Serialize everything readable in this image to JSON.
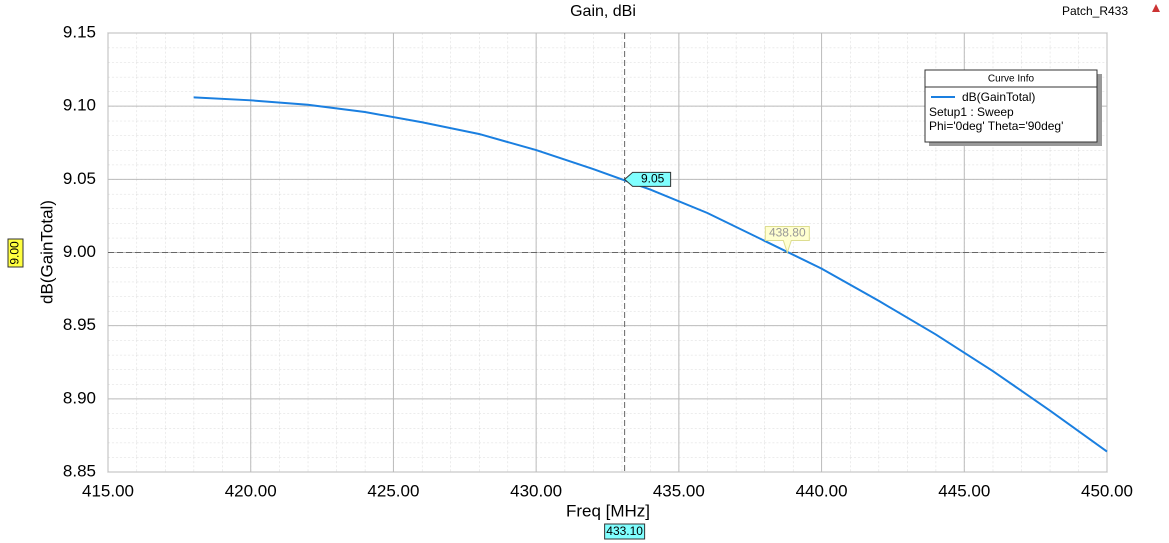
{
  "chart_data": {
    "type": "line",
    "title": "Gain, dBi",
    "project": "Patch_R433",
    "x_label": "Freq [MHz]",
    "y_label": "dB(GainTotal)",
    "xlim": [
      415,
      450
    ],
    "ylim": [
      8.85,
      9.15
    ],
    "xticks": [
      {
        "value": 415,
        "label": "415.00"
      },
      {
        "value": 420,
        "label": "420.00"
      },
      {
        "value": 425,
        "label": "425.00"
      },
      {
        "value": 430,
        "label": "430.00"
      },
      {
        "value": 435,
        "label": "435.00"
      },
      {
        "value": 440,
        "label": "440.00"
      },
      {
        "value": 445,
        "label": "445.00"
      },
      {
        "value": 450,
        "label": "450.00"
      }
    ],
    "yticks": [
      8.85,
      {
        "value": 8.9,
        "label": "8.90"
      },
      8.95,
      {
        "value": 9.0,
        "label": "9.00"
      },
      9.05,
      {
        "value": 9.1,
        "label": "9.10"
      },
      9.15
    ],
    "grid": true,
    "legend": {
      "title": "Curve Info",
      "lines": [
        "Setup1 : Sweep",
        "Phi='0deg' Theta='90deg'"
      ],
      "position": "upper right"
    },
    "x": [
      418,
      420,
      422,
      424,
      426,
      428,
      430,
      432,
      434,
      436,
      438,
      440,
      442,
      444,
      446,
      448,
      450
    ],
    "series": [
      {
        "name": "dB(GainTotal)",
        "color": "#1a7fe0",
        "values": [
          9.106,
          9.104,
          9.101,
          9.096,
          9.089,
          9.081,
          9.07,
          9.057,
          9.043,
          9.027,
          9.008,
          8.989,
          8.967,
          8.944,
          8.919,
          8.892,
          8.864
        ]
      }
    ],
    "x_marker": {
      "value": 433.1,
      "label": "433.10"
    },
    "y_marker": {
      "value": 9.0,
      "label": "9.00"
    },
    "point_labels": [
      {
        "x": 433.1,
        "y": 9.05,
        "label": "9.05"
      },
      {
        "x": 438.8,
        "y": 9.0,
        "label": "438.80"
      }
    ]
  }
}
